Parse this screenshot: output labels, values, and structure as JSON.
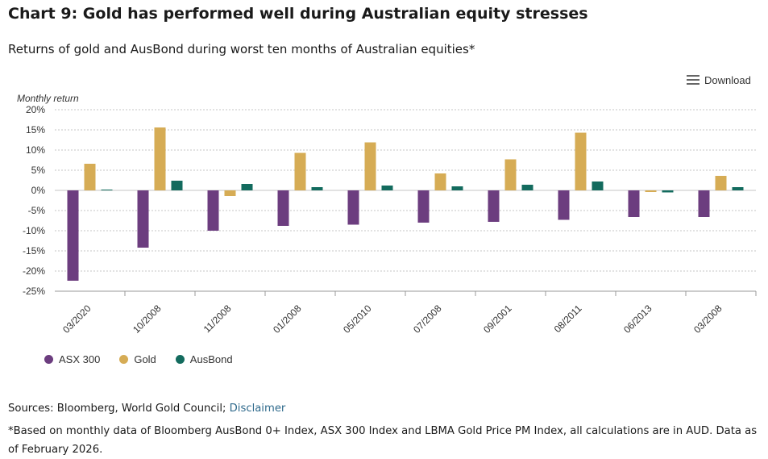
{
  "header": {
    "title": "Chart 9: Gold has performed well during Australian equity stresses",
    "subtitle": "Returns of gold and AusBond during worst ten months of Australian equities*"
  },
  "toolbar": {
    "download_label": "Download",
    "download_icon": "hamburger-menu-icon"
  },
  "chart_data": {
    "type": "bar",
    "ylabel": "Monthly return",
    "xlabel": "",
    "ylim": [
      -25,
      20
    ],
    "yticks": [
      20,
      15,
      10,
      5,
      0,
      -5,
      -10,
      -15,
      -20,
      -25
    ],
    "ytick_labels": [
      "20%",
      "15%",
      "10%",
      "5%",
      "0%",
      "-5%",
      "-10%",
      "-15%",
      "-20%",
      "-25%"
    ],
    "grid": true,
    "legend_position": "bottom-left",
    "categories": [
      "03/2020",
      "10/2008",
      "11/2008",
      "01/2008",
      "05/2010",
      "07/2008",
      "09/2001",
      "08/2011",
      "06/2013",
      "03/2008"
    ],
    "series": [
      {
        "name": "ASX 300",
        "color": "#6c3d7f",
        "values": [
          -22.4,
          -14.2,
          -10.0,
          -8.8,
          -8.5,
          -8.0,
          -7.8,
          -7.3,
          -6.6,
          -6.6
        ]
      },
      {
        "name": "Gold",
        "color": "#d6ac55",
        "values": [
          6.6,
          15.6,
          -1.4,
          9.3,
          11.9,
          4.2,
          7.7,
          14.3,
          -0.4,
          3.6
        ]
      },
      {
        "name": "AusBond",
        "color": "#136b5e",
        "values": [
          0.2,
          2.4,
          1.6,
          0.8,
          1.2,
          1.0,
          1.4,
          2.2,
          -0.5,
          0.8
        ]
      }
    ]
  },
  "legend": {
    "items": [
      {
        "label": "ASX 300",
        "color": "#6c3d7f"
      },
      {
        "label": "Gold",
        "color": "#d6ac55"
      },
      {
        "label": "AusBond",
        "color": "#136b5e"
      }
    ]
  },
  "footer": {
    "sources_prefix": "Sources: Bloomberg, World Gold Council; ",
    "disclaimer_link": "Disclaimer",
    "footnote": "*Based on monthly data of Bloomberg AusBond 0+ Index, ASX 300 Index and LBMA Gold Price PM Index, all calculations are in AUD. Data as of February 2026."
  }
}
